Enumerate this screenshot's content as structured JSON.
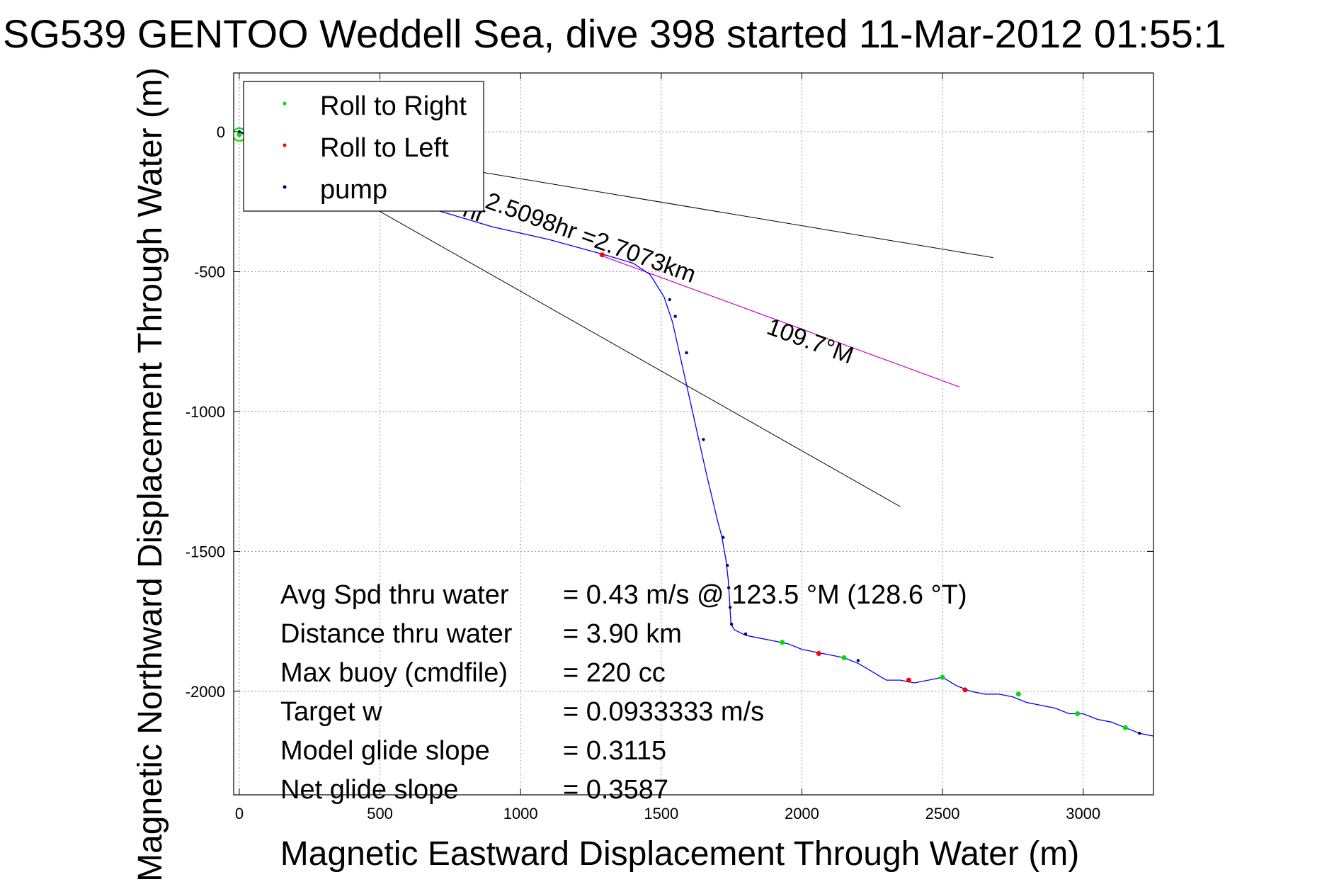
{
  "chart_data": {
    "type": "line",
    "title": "SG539 GENTOO Weddell Sea, dive 398 started 11-Mar-2012 01:55:1",
    "xlabel": "Magnetic Eastward Displacement Through Water (m)",
    "ylabel": "Magnetic Northward Displacement Through Water (m)",
    "xlim": [
      -20,
      3250
    ],
    "ylim": [
      -2370,
      210
    ],
    "xticks": [
      0,
      500,
      1000,
      1500,
      2000,
      2500,
      3000
    ],
    "yticks": [
      0,
      -500,
      -1000,
      -1500,
      -2000
    ],
    "xtick_labels": [
      "0",
      "500",
      "1000",
      "1500",
      "2000",
      "2500",
      "3000"
    ],
    "ytick_labels": [
      "0",
      "-500",
      "-1000",
      "-1500",
      "-2000"
    ],
    "grid": true,
    "legend_position": "top-left",
    "legend": [
      {
        "label": "Roll to Right",
        "color": "#00dd00"
      },
      {
        "label": "Roll to Left",
        "color": "#ff0000"
      },
      {
        "label": "pump",
        "color": "#000080"
      }
    ],
    "track": {
      "color": "#0000ff",
      "x": [
        0,
        100,
        300,
        500,
        700,
        900,
        1100,
        1300,
        1400,
        1460,
        1510,
        1540,
        1580,
        1620,
        1660,
        1700,
        1715,
        1730,
        1738,
        1742,
        1745,
        1748,
        1760,
        1800,
        1850,
        1900,
        1950,
        2000,
        2050,
        2100,
        2150,
        2200,
        2250,
        2300,
        2350,
        2400,
        2450,
        2500,
        2550,
        2600,
        2650,
        2700,
        2750,
        2800,
        2850,
        2900,
        2950,
        3000,
        3050,
        3100,
        3150,
        3200,
        3250
      ],
      "y": [
        0,
        -40,
        -120,
        -200,
        -280,
        -340,
        -385,
        -440,
        -470,
        -510,
        -590,
        -680,
        -860,
        -1040,
        -1220,
        -1390,
        -1445,
        -1530,
        -1600,
        -1660,
        -1710,
        -1760,
        -1780,
        -1800,
        -1810,
        -1820,
        -1830,
        -1850,
        -1860,
        -1870,
        -1880,
        -1900,
        -1930,
        -1960,
        -1960,
        -1970,
        -1960,
        -1950,
        -1980,
        -2000,
        -2010,
        -2010,
        -2020,
        -2040,
        -2050,
        -2060,
        -2080,
        -2080,
        -2100,
        -2110,
        -2130,
        -2150,
        -2160
      ]
    },
    "roll_right_points": {
      "x": [
        0,
        1930,
        2150,
        2500,
        2770,
        2980,
        3150
      ],
      "y": [
        -10,
        -1825,
        -1880,
        -1950,
        -2010,
        -2080,
        -2130
      ]
    },
    "roll_left_points": {
      "x": [
        1290,
        2060,
        2380,
        2580
      ],
      "y": [
        -440,
        -1865,
        -1960,
        -1995
      ]
    },
    "pump_points": {
      "x": [
        0,
        1530,
        1550,
        1590,
        1650,
        1720,
        1735,
        1740,
        1745,
        1750,
        1800,
        2200,
        3200
      ],
      "y": [
        0,
        -600,
        -660,
        -790,
        -1100,
        -1450,
        -1550,
        -1630,
        -1700,
        -1760,
        -1795,
        -1890,
        -2150
      ]
    },
    "heading_line": {
      "color": "#cc00cc",
      "x": [
        1280,
        2560
      ],
      "y": [
        -440,
        -912
      ]
    },
    "cone_lines": [
      {
        "x": [
          0,
          2680
        ],
        "y": [
          0,
          -450
        ]
      },
      {
        "x": [
          0,
          2350
        ],
        "y": [
          0,
          -1340
        ]
      }
    ],
    "annotations": [
      {
        "text": "2.5098hr =2.7073km",
        "x": 870,
        "y": -270,
        "rotation": 20
      },
      {
        "text": "109.7°M",
        "x": 1870,
        "y": -720,
        "rotation": 20
      },
      {
        "text": "hr",
        "x": 790,
        "y": -300,
        "rotation": 20
      }
    ]
  },
  "stats": [
    {
      "label": "Avg Spd thru water",
      "value": "=  0.43 m/s @ 123.5 °M (128.6 °T)"
    },
    {
      "label": "Distance thru water",
      "value": "=  3.90 km"
    },
    {
      "label": "Max buoy (cmdfile)",
      "value": "= 220 cc"
    },
    {
      "label": "Target w",
      "value": "= 0.0933333 m/s"
    },
    {
      "label": "Model glide slope",
      "value": "= 0.3115"
    },
    {
      "label": "Net glide slope",
      "value": "= 0.3587"
    }
  ]
}
